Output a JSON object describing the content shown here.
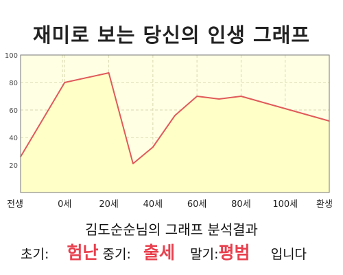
{
  "header": {
    "title": "재미로 보는 당신의 인생 그래프"
  },
  "chart_data": {
    "type": "area",
    "title": "재미로 보는 당신의 인생 그래프",
    "xlabel": "",
    "ylabel": "",
    "ylim": [
      0,
      100
    ],
    "yticks": [
      20,
      40,
      60,
      80,
      100
    ],
    "xlim": [
      -1,
      8.9
    ],
    "xticks": [
      {
        "x": -1,
        "label": "전생"
      },
      {
        "x": 0,
        "label": "0세"
      },
      {
        "x": 20,
        "label": "20세"
      },
      {
        "x": 40,
        "label": "40세"
      },
      {
        "x": 60,
        "label": "60세"
      },
      {
        "x": 80,
        "label": "80세"
      },
      {
        "x": 100,
        "label": "100세"
      },
      {
        "x": 120,
        "label": "환생"
      }
    ],
    "series": [
      {
        "points": [
          [
            -20,
            26
          ],
          [
            0,
            80
          ],
          [
            20,
            87
          ],
          [
            31,
            21
          ],
          [
            40,
            33
          ],
          [
            50,
            56
          ],
          [
            60,
            70
          ],
          [
            70,
            68
          ],
          [
            80,
            70
          ],
          [
            100,
            61
          ],
          [
            120,
            52
          ]
        ]
      }
    ],
    "grid": true,
    "colors": {
      "line": "#e05a5a",
      "fill": "#ffffc8",
      "plot_bg": "#ffffe4"
    }
  },
  "summary": {
    "heading": "김도순순님의 그래프 분석결과",
    "early_label": "초기:",
    "early_value": "험난",
    "mid_label": "중기:",
    "mid_value": "출세",
    "late_label": "말기:",
    "late_value": "평범",
    "ending": "입니다"
  }
}
